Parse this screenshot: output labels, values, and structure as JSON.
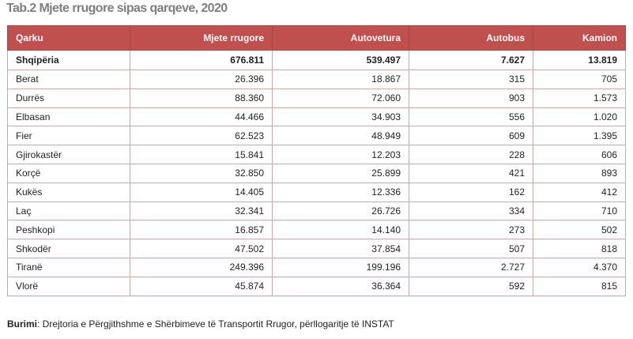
{
  "title": "Tab.2 Mjete rrugore sipas qarqeve, 2020",
  "header": {
    "col0": "Qarku",
    "col1": "Mjete  rrugore",
    "col2": "Autovetura",
    "col3": "Autobus",
    "col4": "Kamion"
  },
  "rows": [
    {
      "region": "Shqipëria",
      "mjete": "676.811",
      "autovetura": "539.497",
      "autobus": "7.627",
      "kamion": "13.819"
    },
    {
      "region": "Berat",
      "mjete": "26.396",
      "autovetura": "18.867",
      "autobus": "315",
      "kamion": "705"
    },
    {
      "region": "Durrës",
      "mjete": "88.360",
      "autovetura": "72.060",
      "autobus": "903",
      "kamion": "1.573"
    },
    {
      "region": "Elbasan",
      "mjete": "44.466",
      "autovetura": "34.903",
      "autobus": "556",
      "kamion": "1.020"
    },
    {
      "region": "Fier",
      "mjete": "62.523",
      "autovetura": "48.949",
      "autobus": "609",
      "kamion": "1.395"
    },
    {
      "region": "Gjirokastër",
      "mjete": "15.841",
      "autovetura": "12.203",
      "autobus": "228",
      "kamion": "606"
    },
    {
      "region": "Korçë",
      "mjete": "32.850",
      "autovetura": "25.899",
      "autobus": "421",
      "kamion": "893"
    },
    {
      "region": "Kukës",
      "mjete": "14.405",
      "autovetura": "12.336",
      "autobus": "162",
      "kamion": "412"
    },
    {
      "region": "Laç",
      "mjete": "32.341",
      "autovetura": "26.726",
      "autobus": "334",
      "kamion": "710"
    },
    {
      "region": "Peshkopi",
      "mjete": "16.857",
      "autovetura": "14.140",
      "autobus": "273",
      "kamion": "502"
    },
    {
      "region": "Shkodër",
      "mjete": "47.502",
      "autovetura": "37.854",
      "autobus": "507",
      "kamion": "818"
    },
    {
      "region": "Tiranë",
      "mjete": "249.396",
      "autovetura": "199.196",
      "autobus": "2.727",
      "kamion": "4.370"
    },
    {
      "region": "Vlorë",
      "mjete": "45.874",
      "autovetura": "36.364",
      "autobus": "592",
      "kamion": "815"
    }
  ],
  "source": {
    "label": "Burimi",
    "text": ": Drejtoria e Përgjithshme e Shërbimeve të Transportit Rrugor, përllogaritje të INSTAT"
  },
  "colors": {
    "header_bg": "#c0504d",
    "title_color": "#7f7f7f",
    "border": "#c9a9a8"
  }
}
